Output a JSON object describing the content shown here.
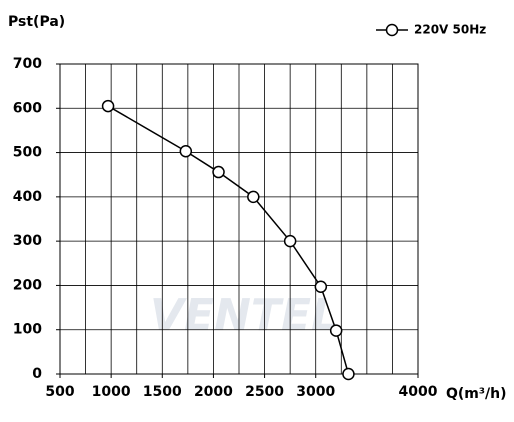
{
  "chart_data": {
    "type": "line",
    "watermark": "VENTEL",
    "y_label": "Pst(Pa)",
    "x_label": "Q(m³/h)",
    "x": [
      970,
      1730,
      2050,
      2390,
      2750,
      3050,
      3200,
      3320
    ],
    "series": [
      {
        "name": "220V 50Hz",
        "color": "#000000",
        "values": [
          605,
          503,
          456,
          400,
          300,
          197,
          98,
          0
        ]
      }
    ],
    "xlim": [
      500,
      4000
    ],
    "xticks": [
      500,
      1000,
      1500,
      2000,
      2500,
      3000,
      4000
    ],
    "ylim": [
      0,
      700
    ],
    "yticks": [
      0,
      100,
      200,
      300,
      400,
      500,
      600,
      700
    ],
    "grid": true,
    "legend": "top-right"
  }
}
